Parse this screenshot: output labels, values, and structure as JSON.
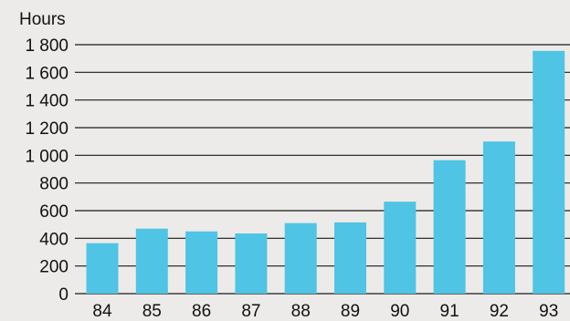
{
  "chart_data": {
    "type": "bar",
    "title": "",
    "xlabel": "",
    "ylabel": "Hours",
    "categories": [
      "84",
      "85",
      "86",
      "87",
      "88",
      "89",
      "90",
      "91",
      "92",
      "93"
    ],
    "values": [
      365,
      470,
      450,
      435,
      510,
      515,
      665,
      965,
      1100,
      1755
    ],
    "ylim": [
      0,
      1800
    ],
    "yticks": [
      0,
      200,
      400,
      600,
      800,
      1000,
      1200,
      1400,
      1600,
      1800
    ],
    "ytick_labels": [
      "0",
      "200",
      "400",
      "600",
      "800",
      "1 000",
      "1 200",
      "1 400",
      "1 600",
      "1 800"
    ],
    "grid": true,
    "legend": "none",
    "bar_color": "#4fc4e4",
    "gridline_color": "#1a1a1a",
    "background_color": "#ecebe9"
  }
}
